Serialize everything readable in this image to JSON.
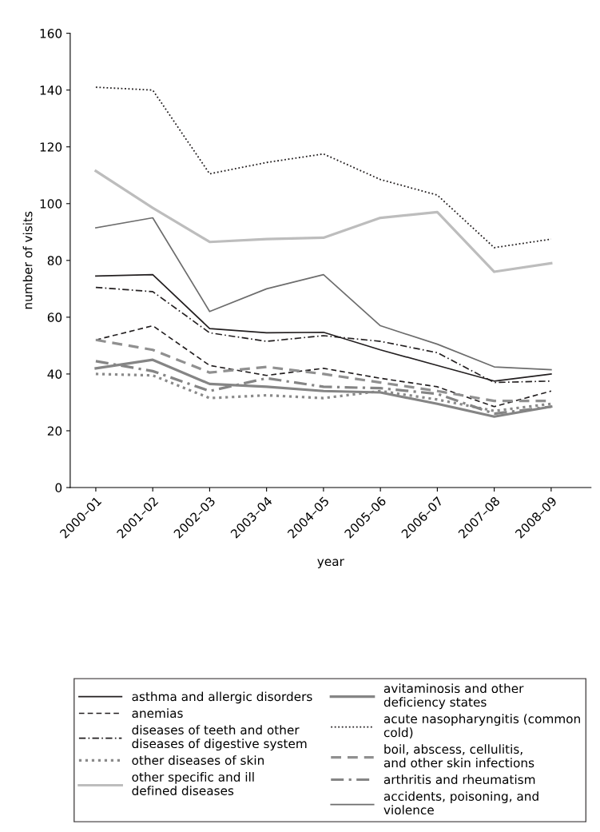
{
  "chart_data": {
    "type": "line",
    "xlabel": "year",
    "ylabel": "number of visits",
    "categories": [
      "2000–01",
      "2001–02",
      "2002–03",
      "2003–04",
      "2004–05",
      "2005–06",
      "2006–07",
      "2007–08",
      "2008–09"
    ],
    "ylim": [
      0,
      160
    ],
    "yticks": [
      0,
      20,
      40,
      60,
      80,
      100,
      120,
      140,
      160
    ],
    "grid": false,
    "legend": "bottom",
    "marker": "none",
    "series": [
      {
        "name": "asthma and allergic disorders",
        "color": "#231f20",
        "line_style": "solid",
        "values": [
          74.5,
          75,
          56,
          54.5,
          54.7,
          48.5,
          43,
          37.5,
          40
        ]
      },
      {
        "name": "anemias",
        "color": "#231f20",
        "line_style": "dashed",
        "values": [
          52,
          57,
          43,
          39.5,
          42,
          38.5,
          35.5,
          28.5,
          34
        ]
      },
      {
        "name": "diseases of teeth and other diseases of digestive system",
        "color": "#231f20",
        "line_style": "dashdot",
        "values": [
          70.5,
          69,
          54.5,
          51.5,
          53.5,
          51.5,
          47.5,
          37,
          37.5
        ]
      },
      {
        "name": "other diseases of skin",
        "color": "#8a8a8a",
        "line_style": "dotted",
        "values": [
          40,
          39.5,
          31.5,
          32.5,
          31.5,
          34,
          31,
          27,
          29.5
        ]
      },
      {
        "name": "other specific and ill defined diseases",
        "color": "#bdbdbd",
        "line_style": "solid",
        "values": [
          111.5,
          98.5,
          86.5,
          87.5,
          88,
          95,
          97,
          76,
          79
        ]
      },
      {
        "name": "avitaminosis and other deficiency states",
        "color": "#858585",
        "line_style": "solid",
        "values": [
          42,
          45,
          36.5,
          35.5,
          34,
          33.5,
          29.5,
          25,
          28.5
        ]
      },
      {
        "name": "acute nasopharyngitis (common cold)",
        "color": "#231f20",
        "line_style": "dotted",
        "values": [
          141,
          140,
          110.5,
          114.5,
          117.5,
          108.5,
          103,
          84.5,
          87.5
        ]
      },
      {
        "name": "boil, abscess, cellulitis, and other skin infections",
        "color": "#909090",
        "line_style": "dashed",
        "values": [
          52,
          48.5,
          40.5,
          42.5,
          40,
          37,
          34,
          30.5,
          30.5
        ]
      },
      {
        "name": "arthritis and rheumatism",
        "color": "#858585",
        "line_style": "dashdot",
        "values": [
          44.5,
          41,
          34,
          38.5,
          35.5,
          35,
          33,
          26,
          28.5
        ]
      },
      {
        "name": "accidents, poisoning, and violence",
        "color": "#6d6d6d",
        "line_style": "solid",
        "values": [
          91.5,
          95,
          62,
          70,
          75,
          57,
          50.5,
          42.5,
          41.5
        ]
      }
    ]
  }
}
